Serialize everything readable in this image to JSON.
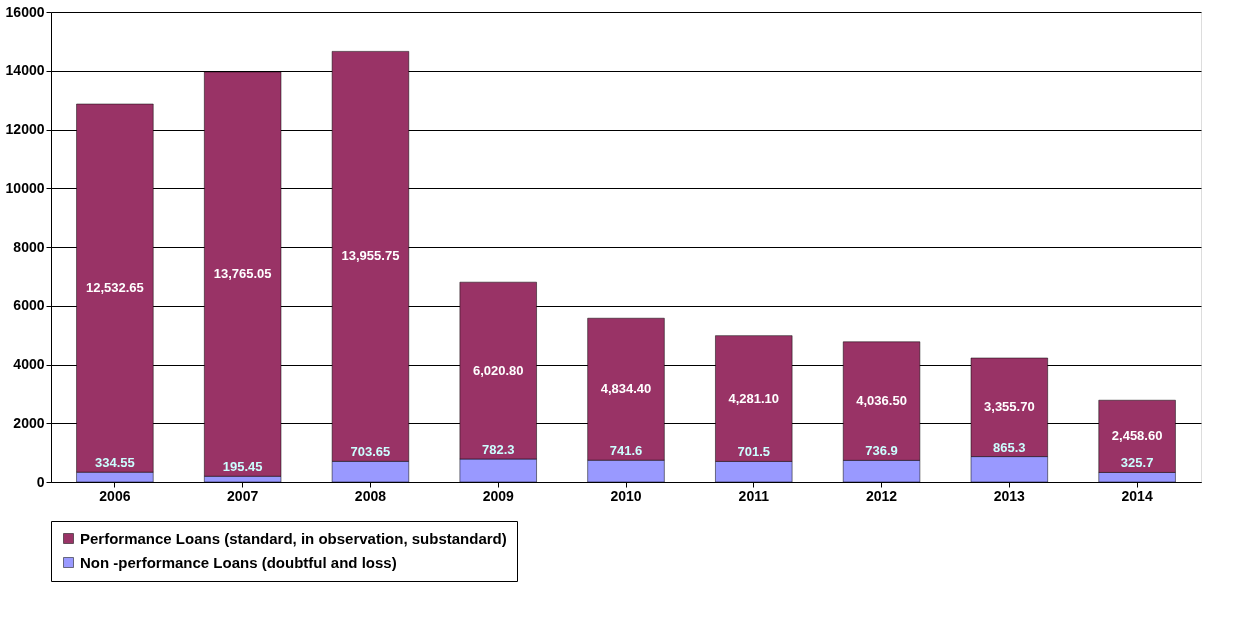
{
  "chart_data": {
    "type": "bar",
    "stacked": true,
    "categories": [
      "2006",
      "2007",
      "2008",
      "2009",
      "2010",
      "2011",
      "2012",
      "2013",
      "2014"
    ],
    "series": [
      {
        "name": "Non -performance Loans (doubtful and loss)",
        "color": "#9999ff",
        "values": [
          334.55,
          195.45,
          703.65,
          782.3,
          741.6,
          701.5,
          736.9,
          865.3,
          325.7
        ],
        "value_labels": [
          "334.55",
          "195.45",
          "703.65",
          "782.3",
          "741.6",
          "701.5",
          "736.9",
          "865.3",
          "325.7"
        ]
      },
      {
        "name": "Performance Loans (standard, in observation, substandard)",
        "color": "#993366",
        "values": [
          12532.65,
          13765.05,
          13955.75,
          6020.8,
          4834.4,
          4281.1,
          4036.5,
          3355.7,
          2458.6
        ],
        "value_labels": [
          "12,532.65",
          "13,765.05",
          "13,955.75",
          "6,020.80",
          "4,834.40",
          "4,281.10",
          "4,036.50",
          "3,355.70",
          "2,458.60"
        ]
      }
    ],
    "ylim": [
      0,
      16000
    ],
    "yticks": [
      0,
      2000,
      4000,
      6000,
      8000,
      10000,
      12000,
      14000,
      16000
    ],
    "grid": "y",
    "legend": "bottom"
  }
}
